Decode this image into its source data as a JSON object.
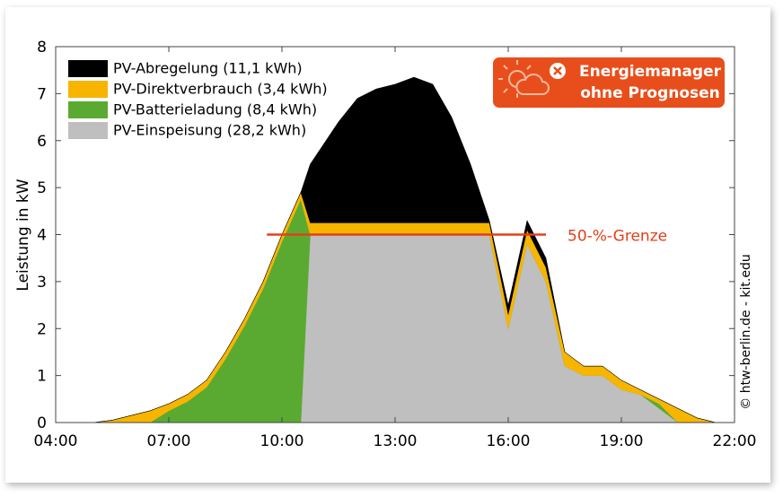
{
  "chart_data": {
    "type": "stacked-area",
    "y_label": "Leistung in kW",
    "x": [
      4,
      5,
      5.5,
      6,
      6.5,
      7,
      7.5,
      8,
      8.5,
      9,
      9.5,
      10,
      10.5,
      10.75,
      11,
      11.5,
      12,
      12.5,
      13,
      13.5,
      14,
      14.5,
      15,
      15.5,
      16,
      16.5,
      17,
      17.5,
      18,
      18.5,
      19,
      19.5,
      20,
      20.5,
      21,
      21.5,
      22
    ],
    "series": [
      {
        "name": "PV-Einspeisung (28,2 kWh)",
        "color": "#bfbfbf",
        "values": [
          0,
          0,
          0,
          0,
          0,
          0,
          0,
          0,
          0,
          0,
          0,
          0,
          0,
          4.0,
          4.0,
          4.0,
          4.0,
          4.0,
          4.0,
          4.0,
          4.0,
          4.0,
          4.0,
          4.0,
          2.0,
          3.8,
          3.0,
          1.2,
          1.0,
          1.0,
          0.7,
          0.6,
          0.3,
          0,
          0,
          0,
          0
        ]
      },
      {
        "name": "PV-Batterieladung (8,4 kWh)",
        "color": "#5aaa32",
        "values": [
          0,
          0,
          0,
          0,
          0,
          0.25,
          0.45,
          0.75,
          1.35,
          2.05,
          2.85,
          3.85,
          4.75,
          0,
          0,
          0,
          0,
          0,
          0,
          0,
          0,
          0,
          0,
          0,
          0,
          0,
          0,
          0,
          0,
          0,
          0,
          0,
          0.1,
          0,
          0,
          0,
          0
        ]
      },
      {
        "name": "PV-Direktverbrauch (3,4 kWh)",
        "color": "#f7b500",
        "values": [
          0,
          0,
          0.05,
          0.15,
          0.25,
          0.15,
          0.15,
          0.15,
          0.15,
          0.15,
          0.15,
          0.15,
          0.15,
          0.25,
          0.25,
          0.25,
          0.25,
          0.25,
          0.25,
          0.25,
          0.25,
          0.25,
          0.25,
          0.25,
          0.3,
          0.3,
          0.3,
          0.3,
          0.2,
          0.2,
          0.2,
          0.1,
          0.1,
          0.3,
          0.1,
          0,
          0
        ]
      },
      {
        "name": "PV-Abregelung (11,1 kWh)",
        "color": "#000000",
        "values": [
          0,
          0,
          0,
          0,
          0,
          0,
          0,
          0,
          0,
          0,
          0,
          0,
          0,
          1.25,
          1.55,
          2.15,
          2.65,
          2.85,
          2.95,
          3.1,
          2.95,
          2.25,
          1.25,
          0.05,
          0.2,
          0.2,
          0.2,
          0,
          0,
          0,
          0,
          0,
          0,
          0,
          0,
          0,
          0
        ]
      }
    ],
    "xlim": [
      4,
      22
    ],
    "xticks": [
      {
        "value": 4,
        "label": "04:00"
      },
      {
        "value": 7,
        "label": "07:00"
      },
      {
        "value": 10,
        "label": "10:00"
      },
      {
        "value": 13,
        "label": "13:00"
      },
      {
        "value": 16,
        "label": "16:00"
      },
      {
        "value": 19,
        "label": "19:00"
      },
      {
        "value": 22,
        "label": "22:00"
      }
    ],
    "ylim": [
      0,
      8
    ],
    "yticks": [
      0,
      1,
      2,
      3,
      4,
      5,
      6,
      7,
      8
    ],
    "threshold": {
      "value": 4,
      "x_start": 9.6,
      "x_end": 17,
      "label": "50-%-Grenze",
      "color": "#e2401b"
    },
    "badge": {
      "lines": [
        "Energiemanager",
        "ohne Prognosen"
      ],
      "color": "#e84e1b"
    },
    "credit": "© htw-berlin.de - kit.edu",
    "legend": "upper left"
  }
}
